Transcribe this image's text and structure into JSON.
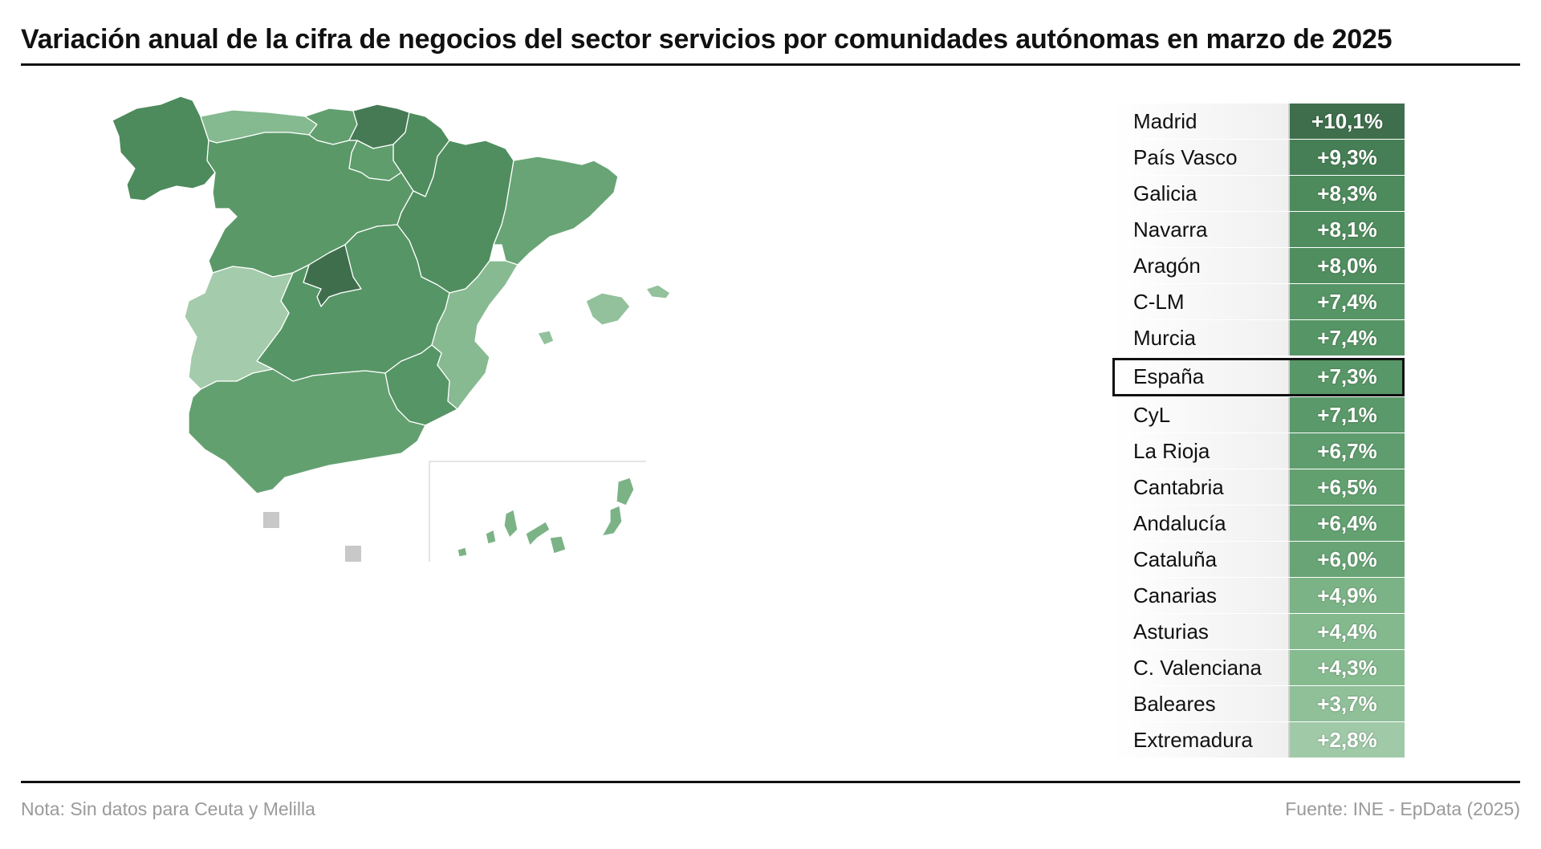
{
  "title": "Variación anual de la cifra de negocios del sector servicios por comunidades autónomas en marzo de 2025",
  "footer": {
    "note": "Nota: Sin datos para Ceuta y Melilla",
    "source": "Fuente: INE - EpData (2025)"
  },
  "colors": {
    "darkest": "#3f6e4d",
    "dark": "#4d8a5c",
    "medium": "#5e9c6d",
    "light": "#8cbd95",
    "lightest": "#a4cbab",
    "nodata": "#c8c8c8"
  },
  "map_regions": [
    {
      "name": "Madrid",
      "value": 10.1
    },
    {
      "name": "País Vasco",
      "value": 9.3
    },
    {
      "name": "Galicia",
      "value": 8.3
    },
    {
      "name": "Navarra",
      "value": 8.1
    },
    {
      "name": "Aragón",
      "value": 8.0
    },
    {
      "name": "C-LM",
      "value": 7.4
    },
    {
      "name": "Murcia",
      "value": 7.4
    },
    {
      "name": "CyL",
      "value": 7.1
    },
    {
      "name": "La Rioja",
      "value": 6.7
    },
    {
      "name": "Cantabria",
      "value": 6.5
    },
    {
      "name": "Andalucía",
      "value": 6.4
    },
    {
      "name": "Cataluña",
      "value": 6.0
    },
    {
      "name": "Canarias",
      "value": 4.9
    },
    {
      "name": "Asturias",
      "value": 4.4
    },
    {
      "name": "C. Valenciana",
      "value": 4.3
    },
    {
      "name": "Baleares",
      "value": 3.7
    },
    {
      "name": "Extremadura",
      "value": 2.8
    }
  ],
  "ranking": [
    {
      "name": "Madrid",
      "label": "+10,1%",
      "value": 10.1,
      "color": "#3f6e4d"
    },
    {
      "name": "País Vasco",
      "label": "+9,3%",
      "value": 9.3,
      "color": "#467f55"
    },
    {
      "name": "Galicia",
      "label": "+8,3%",
      "value": 8.3,
      "color": "#4d8a5c"
    },
    {
      "name": "Navarra",
      "label": "+8,1%",
      "value": 8.1,
      "color": "#4f8d5e"
    },
    {
      "name": "Aragón",
      "label": "+8,0%",
      "value": 8.0,
      "color": "#508e5f"
    },
    {
      "name": "C-LM",
      "label": "+7,4%",
      "value": 7.4,
      "color": "#569565"
    },
    {
      "name": "Murcia",
      "label": "+7,4%",
      "value": 7.4,
      "color": "#569565"
    },
    {
      "name": "España",
      "label": "+7,3%",
      "value": 7.3,
      "color": "#589767",
      "highlight": true
    },
    {
      "name": "CyL",
      "label": "+7,1%",
      "value": 7.1,
      "color": "#5a9969"
    },
    {
      "name": "La Rioja",
      "label": "+6,7%",
      "value": 6.7,
      "color": "#5f9d6e"
    },
    {
      "name": "Cantabria",
      "label": "+6,5%",
      "value": 6.5,
      "color": "#62a070"
    },
    {
      "name": "Andalucía",
      "label": "+6,4%",
      "value": 6.4,
      "color": "#63a171"
    },
    {
      "name": "Cataluña",
      "label": "+6,0%",
      "value": 6.0,
      "color": "#68a475"
    },
    {
      "name": "Canarias",
      "label": "+4,9%",
      "value": 4.9,
      "color": "#7bb386"
    },
    {
      "name": "Asturias",
      "label": "+4,4%",
      "value": 4.4,
      "color": "#84b98e"
    },
    {
      "name": "C. Valenciana",
      "label": "+4,3%",
      "value": 4.3,
      "color": "#86ba8f"
    },
    {
      "name": "Baleares",
      "label": "+3,7%",
      "value": 3.7,
      "color": "#90c098"
    },
    {
      "name": "Extremadura",
      "label": "+2,8%",
      "value": 2.8,
      "color": "#a0c9a8"
    }
  ]
}
